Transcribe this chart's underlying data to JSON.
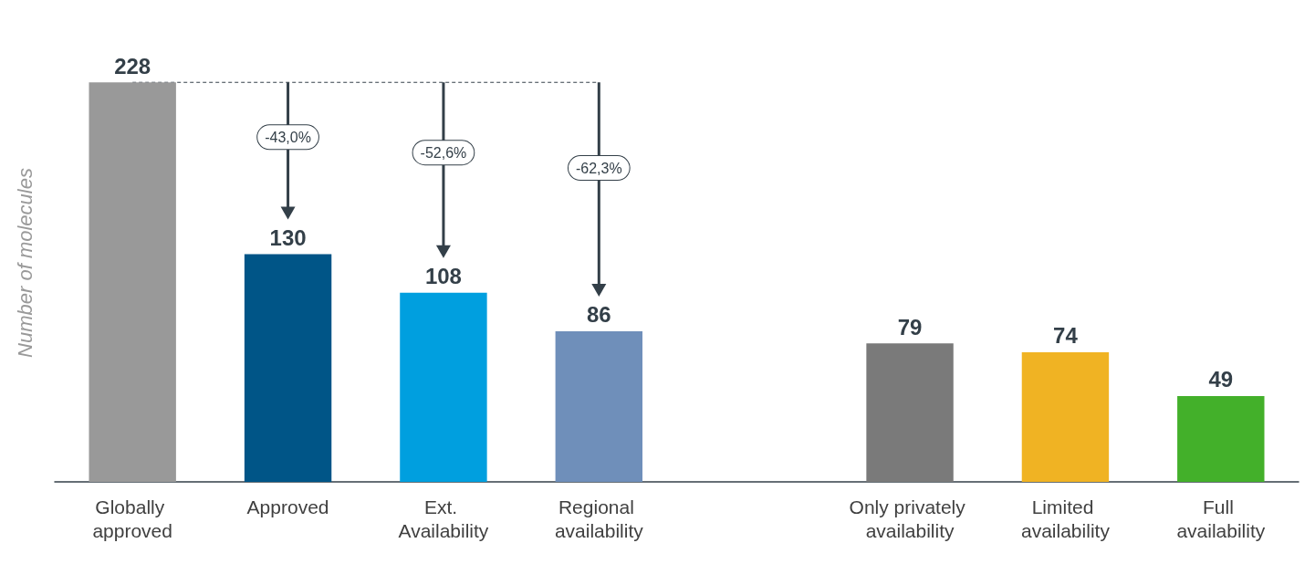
{
  "chart_data": {
    "type": "bar",
    "ylabel": "Number of molecules",
    "categories": [
      "Globally approved",
      "Approved",
      "Ext. Availability",
      "Regional availability",
      null,
      "Only privately availability",
      "Limited availability",
      "Full availability"
    ],
    "values": [
      228,
      130,
      108,
      86,
      null,
      79,
      74,
      49
    ],
    "colors": [
      "#999999",
      "#005587",
      "#009fdf",
      "#6f8fba",
      "#ffffff",
      "#7a7a7a",
      "#f0b323",
      "#43b02a"
    ],
    "data_labels": true,
    "grid": false,
    "ref_lines": [
      {
        "axis": "y",
        "value": 228,
        "line_style": "dashed",
        "color": "#333f48"
      }
    ],
    "annotations": [
      "-43,0%",
      "-52,6%",
      "-62,3%"
    ]
  }
}
